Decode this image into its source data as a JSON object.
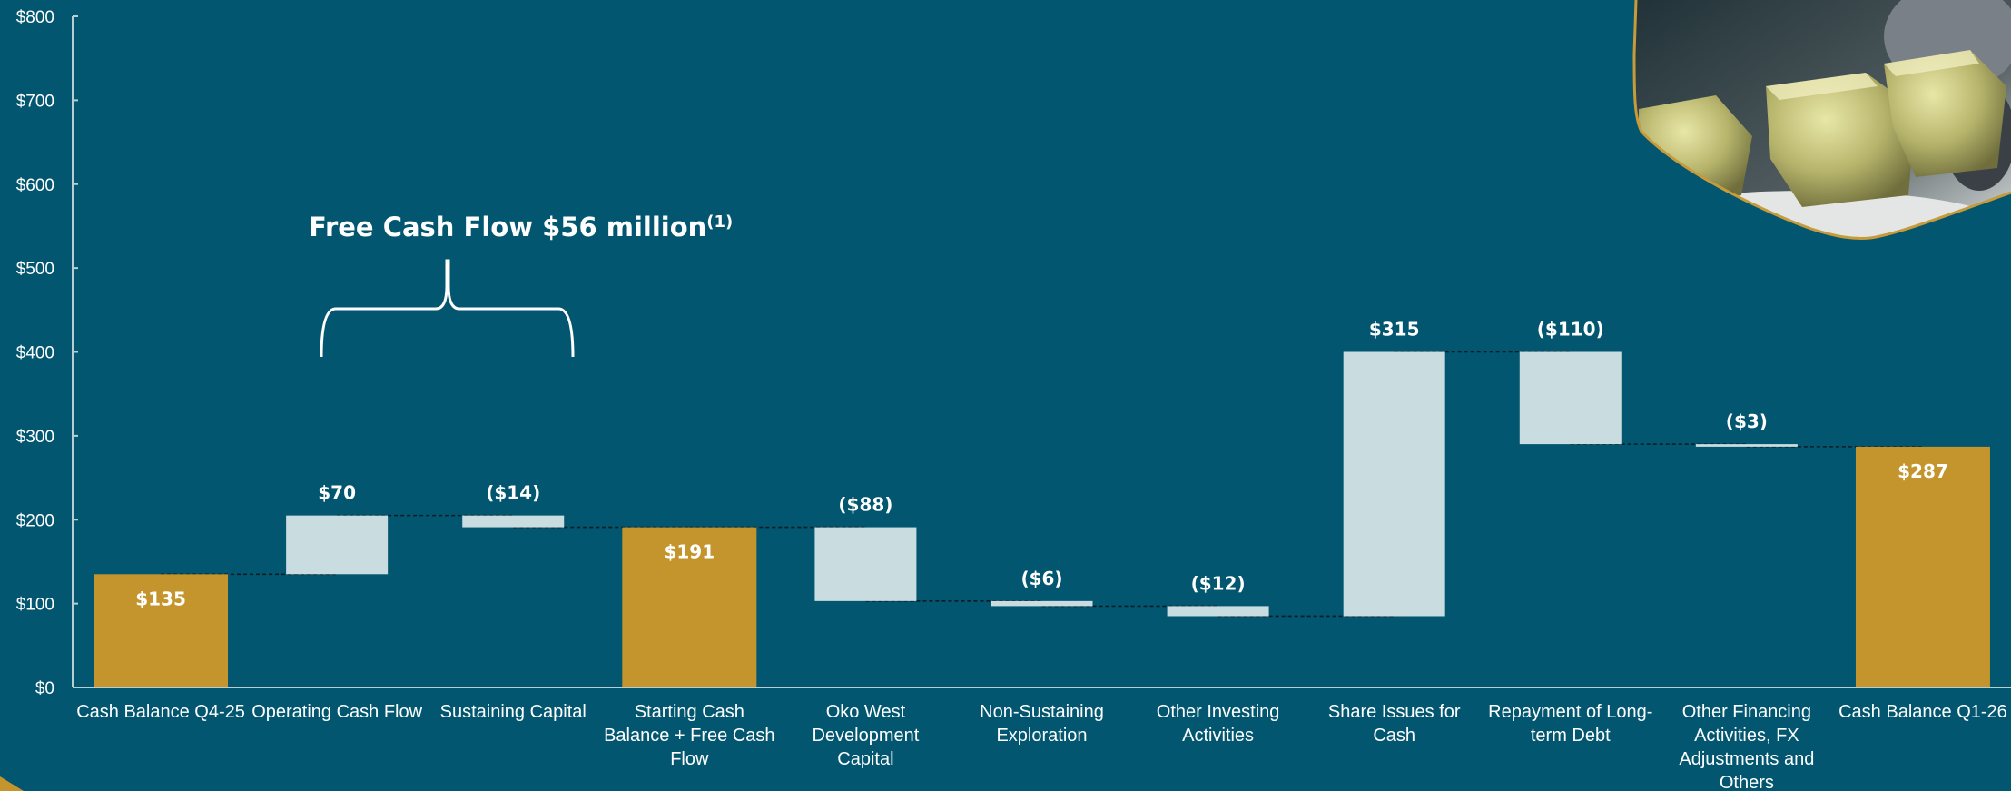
{
  "chart_data": {
    "type": "bar",
    "subtype": "waterfall",
    "categories": [
      "Cash Balance Q4-25",
      "Operating Cash Flow",
      "Sustaining Capital",
      "Starting Cash Balance + Free Cash Flow",
      "Oko West Development Capital",
      "Non-Sustaining Exploration",
      "Other Investing Activities",
      "Share Issues for Cash",
      "Repayment of Long-term Debt",
      "Other Financing Activities, FX Adjustments and Others",
      "Cash Balance Q1-26"
    ],
    "category_lines": [
      [
        "Cash Balance Q4-25"
      ],
      [
        "Operating Cash Flow"
      ],
      [
        "Sustaining Capital"
      ],
      [
        "Starting Cash",
        "Balance + Free Cash",
        "Flow"
      ],
      [
        "Oko West",
        "Development",
        "Capital"
      ],
      [
        "Non-Sustaining",
        "Exploration"
      ],
      [
        "Other Investing",
        "Activities"
      ],
      [
        "Share Issues for",
        "Cash"
      ],
      [
        "Repayment of Long-",
        "term Debt"
      ],
      [
        "Other Financing",
        "Activities, FX",
        "Adjustments and",
        "Others"
      ],
      [
        "Cash Balance Q1-26"
      ]
    ],
    "values": [
      135,
      70,
      -14,
      191,
      -88,
      -6,
      -12,
      315,
      -110,
      -3,
      287
    ],
    "bar_kind": [
      "total",
      "delta",
      "delta",
      "total",
      "delta",
      "delta",
      "delta",
      "delta",
      "delta",
      "delta",
      "total"
    ],
    "data_labels": [
      "$135",
      "$70",
      "($14)",
      "$191",
      "($88)",
      "($6)",
      "($12)",
      "$315",
      "($110)",
      "($3)",
      "$287"
    ],
    "y_ticks": [
      "$0",
      "$100",
      "$200",
      "$300",
      "$400",
      "$500",
      "$600",
      "$700",
      "$800"
    ],
    "ylim": [
      0,
      800
    ],
    "xlabel": "",
    "ylabel": "",
    "grid": false,
    "legend": "none",
    "annotation": {
      "text": "Free Cash Flow $56 million",
      "superscript": "(1)",
      "spans_categories": [
        "Operating Cash Flow",
        "Sustaining Capital"
      ]
    },
    "colors": {
      "background": "#02566f",
      "total_bar": "#c4952c",
      "delta_bar": "#c9dde1",
      "axis": "#b9cdd3",
      "text": "#ffffff",
      "connector": "#0d1b22"
    }
  },
  "photo": {
    "name": "gold-bars-photo"
  }
}
